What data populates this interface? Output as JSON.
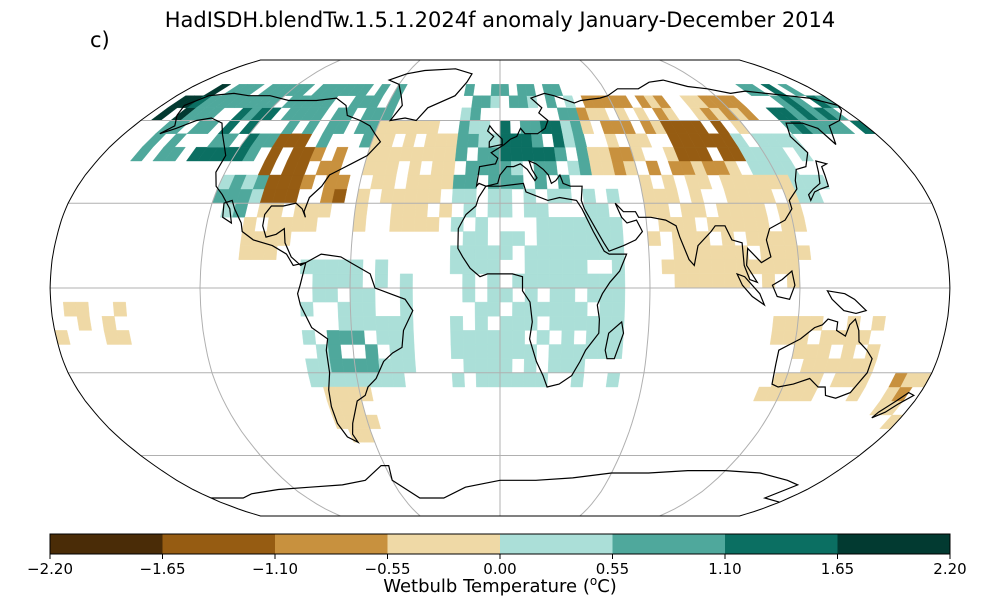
{
  "title": "HadISDH.blendTw.1.5.1.2024f anomaly January-December 2014",
  "panel_label": "c)",
  "colorbar": {
    "label": "Wetbulb Temperature (°C)",
    "label_prefix": "Wetbulb Temperature (",
    "label_unit_sup": "o",
    "label_unit": "C)",
    "ticks": [
      "−2.20",
      "−1.65",
      "−1.10",
      "−0.55",
      "0.00",
      "0.55",
      "1.10",
      "1.65",
      "2.20"
    ],
    "bins": [
      -2.2,
      -1.65,
      -1.1,
      -0.55,
      0.0,
      0.55,
      1.1,
      1.65,
      2.2
    ],
    "colors": [
      "#4a2c07",
      "#965c12",
      "#c8913e",
      "#efd9a6",
      "#abdfd8",
      "#4fa89c",
      "#0b6f62",
      "#023a31"
    ]
  },
  "chart_data": {
    "type": "heatmap",
    "projection": "Robinson",
    "title": "HadISDH.blendTw.1.5.1.2024f anomaly January-December 2014",
    "variable": "Wetbulb Temperature anomaly (°C)",
    "grid_resolution_deg": [
      5,
      5
    ],
    "gridlines": {
      "lon_step_deg": 60,
      "lat_step_deg": 30
    },
    "color_bins": [
      -2.2,
      -1.65,
      -1.1,
      -0.55,
      0.0,
      0.55,
      1.1,
      1.65,
      2.2
    ],
    "regions": [
      {
        "lon": [
          -165,
          -55
        ],
        "lat": [
          45,
          75
        ],
        "value": 0.8
      },
      {
        "lon": [
          -140,
          -115
        ],
        "lat": [
          45,
          65
        ],
        "value": 1.3
      },
      {
        "lon": [
          -175,
          -160
        ],
        "lat": [
          60,
          72
        ],
        "value": 1.8
      },
      {
        "lon": [
          -105,
          -85
        ],
        "lat": [
          30,
          55
        ],
        "value": -1.4
      },
      {
        "lon": [
          -85,
          -65
        ],
        "lat": [
          30,
          50
        ],
        "value": -0.9
      },
      {
        "lon": [
          -120,
          -100
        ],
        "lat": [
          25,
          40
        ],
        "value": 0.6
      },
      {
        "lon": [
          -105,
          -70
        ],
        "lat": [
          10,
          30
        ],
        "value": -0.3
      },
      {
        "lon": [
          -80,
          -35
        ],
        "lat": [
          -35,
          10
        ],
        "value": 0.3
      },
      {
        "lon": [
          -70,
          -50
        ],
        "lat": [
          -30,
          -15
        ],
        "value": 0.8
      },
      {
        "lon": [
          -75,
          -55
        ],
        "lat": [
          -55,
          -35
        ],
        "value": -0.3
      },
      {
        "lon": [
          -60,
          -20
        ],
        "lat": [
          20,
          60
        ],
        "value": -0.3
      },
      {
        "lon": [
          -20,
          40
        ],
        "lat": [
          35,
          75
        ],
        "value": 0.7
      },
      {
        "lon": [
          0,
          30
        ],
        "lat": [
          45,
          60
        ],
        "value": 1.2
      },
      {
        "lon": [
          -20,
          50
        ],
        "lat": [
          -35,
          35
        ],
        "value": 0.25
      },
      {
        "lon": [
          40,
          130
        ],
        "lat": [
          40,
          70
        ],
        "value": -0.5
      },
      {
        "lon": [
          80,
          110
        ],
        "lat": [
          45,
          60
        ],
        "value": -1.4
      },
      {
        "lon": [
          110,
          140
        ],
        "lat": [
          30,
          55
        ],
        "value": 0.3
      },
      {
        "lon": [
          60,
          125
        ],
        "lat": [
          0,
          40
        ],
        "value": -0.25
      },
      {
        "lon": [
          110,
          155
        ],
        "lat": [
          -40,
          -10
        ],
        "value": -0.3
      },
      {
        "lon": [
          140,
          180
        ],
        "lat": [
          55,
          75
        ],
        "value": 1.0
      },
      {
        "lon": [
          -180,
          -150
        ],
        "lat": [
          -20,
          -5
        ],
        "value": -0.3
      },
      {
        "lon": [
          165,
          180
        ],
        "lat": [
          -50,
          -30
        ],
        "value": -0.4
      }
    ]
  }
}
